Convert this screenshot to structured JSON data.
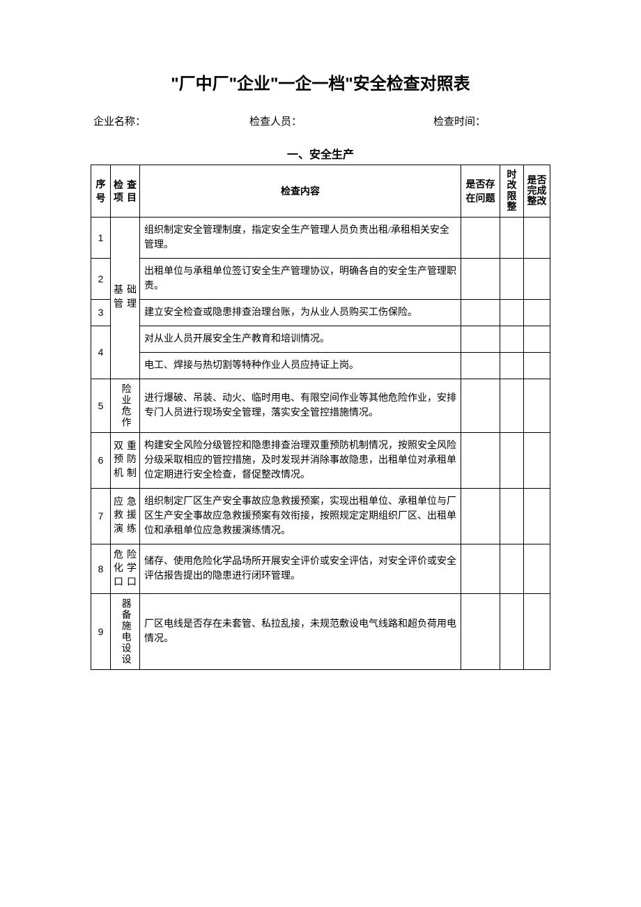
{
  "colors": {
    "background": "#ffffff",
    "text": "#000000",
    "border": "#000000"
  },
  "typography": {
    "title_fontsize": 24,
    "section_fontsize": 16,
    "body_fontsize": 14,
    "info_fontsize": 15,
    "title_font": "SimHei",
    "body_font": "SimSun"
  },
  "title": "\"厂中厂\"企业\"一企一档\"安全检查对照表",
  "info": {
    "company_label": "企业名称：",
    "inspector_label": "检查人员：",
    "date_label": "检查时间："
  },
  "section_heading": "一、安全生产",
  "columns": {
    "num": "序号",
    "category": "检 查项目",
    "content": "检查内容",
    "issue": "是否存在问题",
    "timelimit": "时改限整",
    "done": "是否完成整改"
  },
  "rows": [
    {
      "num": "1",
      "category": "基 础管理",
      "cat_rowspan": 5,
      "content": "组织制定安全管理制度，指定安全生产管理人员负责出租/承租相关安全管理。"
    },
    {
      "num": "2",
      "content": "出租单位与承租单位签订安全生产管理协议，明确各自的安全生产管理职责。"
    },
    {
      "num": "3",
      "content": "建立安全检查或隐患排查治理台账，为从业人员购买工伤保险。"
    },
    {
      "num": "4",
      "num_rowspan": 2,
      "content": "对从业人员开展安全生产教育和培训情况。"
    },
    {
      "content": "电工、焊接与热切割等特种作业人员应持证上岗。"
    },
    {
      "num": "5",
      "category": "险业危作",
      "cat_vert": true,
      "content": "进行爆破、吊装、动火、临时用电、有限空间作业等其他危险作业，安排专门人员进行现场安全管理，落实安全管控措施情况。"
    },
    {
      "num": "6",
      "category": "双重预防机制",
      "content": "构建安全风险分级管控和隐患排查治理双重预防机制情况，按照安全风险分级采取相应的管控措施，及时发现并消除事故隐患，出租单位对承租单位定期进行安全检查，督促整改情况。"
    },
    {
      "num": "7",
      "category": "应急救援演练",
      "content": "组织制定厂区生产安全事故应急救援预案，实现出租单位、承租单位与厂区生产安全事故应急救援预案有效衔接，按照规定定期组织厂区、出租单位和承租单位应急救援演练情况。"
    },
    {
      "num": "8",
      "category": "危险化学口口",
      "content": "储存、使用危险化学品场所开展安全评价或安全评估，对安全评价或安全评估报告提出的隐患进行闭环管理。"
    },
    {
      "num": "9",
      "category": "器备施电设设",
      "cat_vert": true,
      "content": "厂区电线是否存在未套管、私拉乱接，未规范敷设电气线路和超负荷用电情况。"
    }
  ]
}
